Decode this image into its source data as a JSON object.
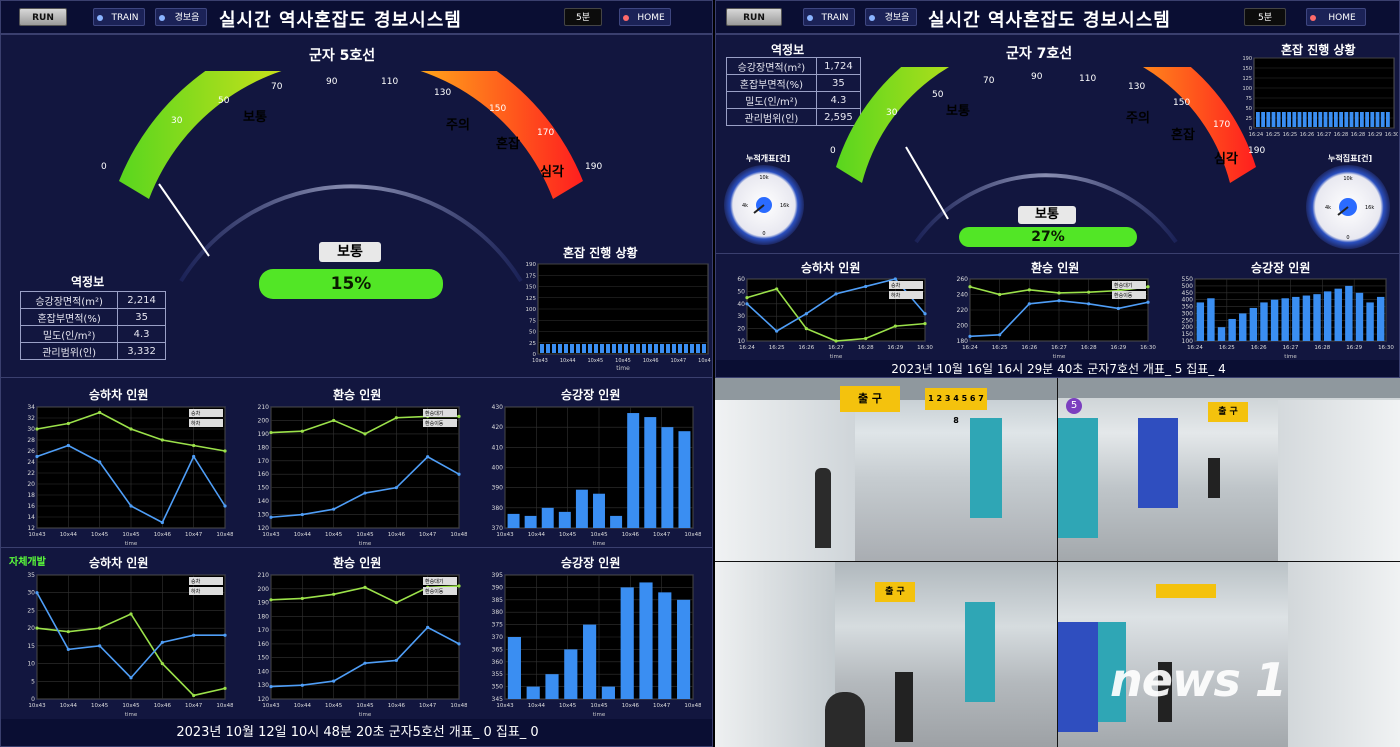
{
  "left": {
    "run": "RUN",
    "train": "TRAIN",
    "alarm": "경보음",
    "title": "실시간 역사혼잡도 경보시스템",
    "interval": "5분",
    "home": "HOME",
    "station": "군자 5호선",
    "gauge_ticks": [
      "0",
      "30",
      "50",
      "70",
      "90",
      "110",
      "130",
      "150",
      "170",
      "190"
    ],
    "zones": [
      "보통",
      "주의",
      "혼잡",
      "심각"
    ],
    "status": "보통",
    "percent": "15%",
    "info_title": "역정보",
    "info": [
      [
        "승강장면적(m²)",
        "2,214"
      ],
      [
        "혼잡부면적(%)",
        "35"
      ],
      [
        "밀도(인/m²)",
        "4.3"
      ],
      [
        "관리범위(인)",
        "3,332"
      ]
    ],
    "progress_title": "혼잡 진행 상황",
    "progress_y": [
      "190",
      "175",
      "150",
      "125",
      "100",
      "75",
      "50",
      "25",
      "0"
    ],
    "progress_yl": "혼잡도(%)",
    "progress_x": [
      "10x43",
      "10x44",
      "10x45",
      "10x45",
      "10x46",
      "10x47",
      "10x48"
    ],
    "time_label": "time",
    "row1": {
      "c1": "승하차 인원",
      "c2": "환승 인원",
      "c3": "승강장 인원",
      "l1a": "승차",
      "l1b": "하차",
      "l2a": "환승대기",
      "l2b": "환승이동",
      "y1": [
        "34",
        "32",
        "30",
        "28",
        "26",
        "24",
        "22",
        "20",
        "18",
        "16",
        "14",
        "12"
      ],
      "y2": [
        "210",
        "200",
        "190",
        "180",
        "170",
        "160",
        "150",
        "140",
        "130",
        "120"
      ],
      "y3": [
        "430",
        "420",
        "410",
        "400",
        "390",
        "380",
        "370"
      ],
      "x": [
        "10x43",
        "10x44",
        "10x45",
        "10x45",
        "10x46",
        "10x47",
        "10x48"
      ]
    },
    "row2": {
      "tag": "자체개발",
      "c1": "승하차 인원",
      "c2": "환승 인원",
      "c3": "승강장 인원",
      "l1a": "승차",
      "l1b": "하차",
      "l2a": "환승대기",
      "l2b": "환승이동",
      "y1": [
        "35",
        "30",
        "25",
        "20",
        "15",
        "10",
        "5",
        "0"
      ],
      "y2": [
        "210",
        "200",
        "190",
        "180",
        "170",
        "160",
        "150",
        "140",
        "130",
        "120"
      ],
      "y3": [
        "395",
        "390",
        "385",
        "380",
        "375",
        "370",
        "365",
        "360",
        "355",
        "350",
        "345"
      ],
      "x": [
        "10x43",
        "10x44",
        "10x45",
        "10x45",
        "10x46",
        "10x47",
        "10x48"
      ]
    },
    "footer": "2023년 10월 12일 10시 48분 20초 군자5호선  개표_ 0 집표_ 0"
  },
  "right": {
    "run": "RUN",
    "train": "TRAIN",
    "alarm": "경보음",
    "title": "실시간 역사혼잡도 경보시스템",
    "interval": "5분",
    "home": "HOME",
    "station": "군자 7호선",
    "gauge_ticks": [
      "0",
      "30",
      "50",
      "70",
      "90",
      "110",
      "130",
      "150",
      "170",
      "190"
    ],
    "zones": [
      "보통",
      "주의",
      "혼잡",
      "심각"
    ],
    "status": "보통",
    "percent": "27%",
    "info_title": "역정보",
    "info": [
      [
        "승강장면적(m²)",
        "1,724"
      ],
      [
        "혼잡부면적(%)",
        "35"
      ],
      [
        "밀도(인/m²)",
        "4.3"
      ],
      [
        "관리범위(인)",
        "2,595"
      ]
    ],
    "progress_title": "혼잡 진행 상황",
    "progress_y": [
      "190",
      "150",
      "125",
      "100",
      "75",
      "50",
      "25",
      "0"
    ],
    "progress_x": [
      "16:24",
      "16:25",
      "16:25",
      "16:26",
      "16:27",
      "16:28",
      "16:28",
      "16:29",
      "16:30"
    ],
    "time_label": "time",
    "dial_left": "누적개표[건]",
    "dial_right": "누적집표[건]",
    "dial_ticks": [
      "0",
      "2k",
      "4k",
      "6k",
      "8k",
      "10k",
      "12k",
      "14k",
      "16k",
      "18k",
      "20k"
    ],
    "c1": "승하차 인원",
    "c2": "환승 인원",
    "c3": "승강장 인원",
    "l1a": "승차",
    "l1b": "하차",
    "l2a": "환승대기",
    "l2b": "환승이동",
    "y1": [
      "60",
      "50",
      "40",
      "30",
      "20",
      "10"
    ],
    "y2": [
      "260",
      "240",
      "220",
      "200",
      "180"
    ],
    "y3": [
      "550",
      "500",
      "450",
      "400",
      "350",
      "300",
      "250",
      "200",
      "150",
      "100"
    ],
    "x": [
      "16:24",
      "16:25",
      "16:26",
      "16:27",
      "16:28",
      "16:29",
      "16:30"
    ],
    "footer": "2023년 10월 16일 16시 29분 40초 군자7호선  개표_ 5 집표_ 4"
  },
  "cams": {
    "exit": "출 구",
    "exit_sub": "Exit 出口",
    "nums": "1 2 3 4 5 6 7 8",
    "line5": "5",
    "watermark": "news 1"
  },
  "chart_data": [
    {
      "type": "line",
      "title": "승하차 인원",
      "x": [
        "10x43",
        "10x44",
        "10x45",
        "10x45",
        "10x46",
        "10x47",
        "10x48"
      ],
      "series": [
        {
          "name": "승차",
          "values": [
            30,
            31,
            33,
            30,
            28,
            27,
            26
          ]
        },
        {
          "name": "하차",
          "values": [
            25,
            27,
            24,
            16,
            13,
            25,
            16
          ]
        }
      ]
    },
    {
      "type": "line",
      "title": "환승 인원",
      "x": [
        "10x43",
        "10x44",
        "10x45",
        "10x45",
        "10x46",
        "10x47",
        "10x48"
      ],
      "series": [
        {
          "name": "환승대기",
          "values": [
            191,
            192,
            200,
            190,
            202,
            203,
            203
          ]
        },
        {
          "name": "환승이동",
          "values": [
            128,
            130,
            134,
            146,
            150,
            173,
            160
          ]
        }
      ]
    },
    {
      "type": "bar",
      "title": "승강장 인원",
      "ylim": [
        370,
        430
      ],
      "values": [
        377,
        376,
        380,
        378,
        389,
        387,
        376,
        427,
        425,
        420,
        418
      ]
    },
    {
      "type": "line",
      "title": "승하차 인원",
      "x": [
        "10x43",
        "10x44",
        "10x45",
        "10x45",
        "10x46",
        "10x47",
        "10x48"
      ],
      "series": [
        {
          "name": "승차",
          "values": [
            20,
            19,
            20,
            24,
            10,
            1,
            3
          ]
        },
        {
          "name": "하차",
          "values": [
            30,
            14,
            15,
            6,
            16,
            18,
            18
          ]
        }
      ]
    },
    {
      "type": "line",
      "title": "환승 인원",
      "x": [
        "10x43",
        "10x44",
        "10x45",
        "10x45",
        "10x46",
        "10x47",
        "10x48"
      ],
      "series": [
        {
          "name": "환승대기",
          "values": [
            192,
            193,
            196,
            201,
            190,
            201,
            202
          ]
        },
        {
          "name": "환승이동",
          "values": [
            129,
            130,
            133,
            146,
            148,
            172,
            160
          ]
        }
      ]
    },
    {
      "type": "bar",
      "title": "승강장 인원",
      "ylim": [
        345,
        395
      ],
      "values": [
        370,
        350,
        355,
        365,
        375,
        350,
        390,
        392,
        388,
        385
      ]
    },
    {
      "type": "line",
      "title": "승하차 인원",
      "x": [
        "16:24",
        "16:25",
        "16:26",
        "16:27",
        "16:28",
        "16:29",
        "16:30"
      ],
      "series": [
        {
          "name": "승차",
          "values": [
            45,
            52,
            20,
            10,
            12,
            22,
            24
          ]
        },
        {
          "name": "하차",
          "values": [
            40,
            18,
            32,
            48,
            54,
            60,
            32
          ]
        }
      ]
    },
    {
      "type": "line",
      "title": "환승 인원",
      "x": [
        "16:24",
        "16:25",
        "16:26",
        "16:27",
        "16:28",
        "16:29",
        "16:30"
      ],
      "series": [
        {
          "name": "환승대기",
          "values": [
            250,
            240,
            246,
            242,
            243,
            245,
            250
          ]
        },
        {
          "name": "환승이동",
          "values": [
            186,
            188,
            228,
            232,
            228,
            222,
            230
          ]
        }
      ]
    },
    {
      "type": "bar",
      "title": "승강장 인원",
      "values": [
        380,
        410,
        200,
        260,
        300,
        340,
        380,
        400,
        410,
        420,
        430,
        440,
        460,
        480,
        500,
        450,
        380,
        420
      ]
    }
  ]
}
